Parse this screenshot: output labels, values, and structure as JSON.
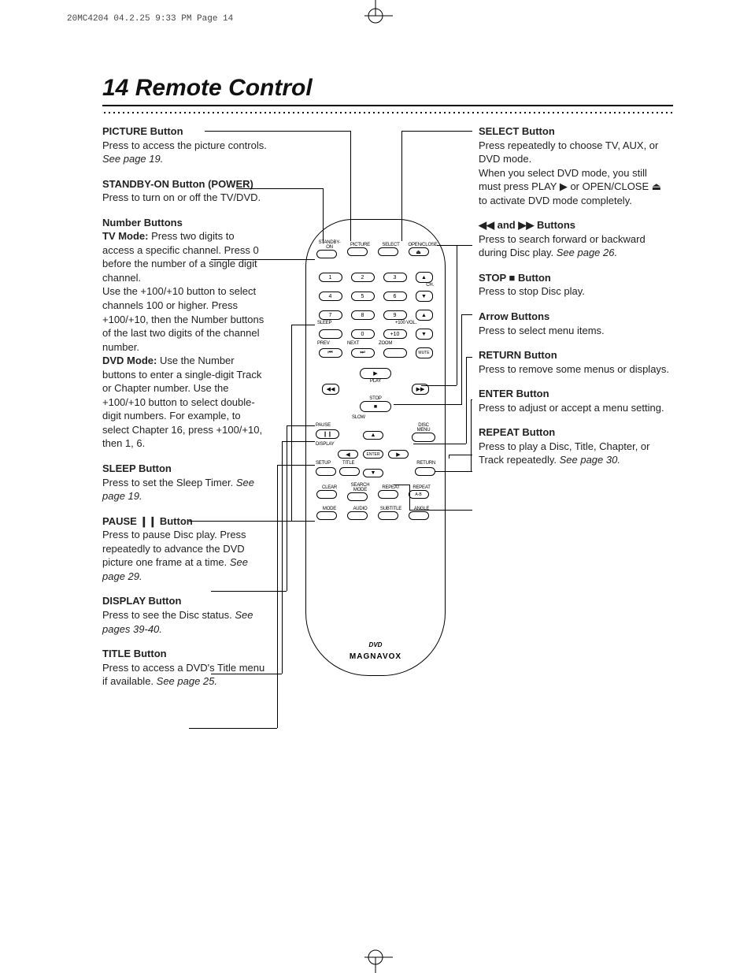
{
  "header": "20MC4204  04.2.25  9:33 PM  Page 14",
  "title": "14  Remote Control",
  "left_items": [
    {
      "title": "PICTURE Button",
      "body": "Press to access the picture controls. <i>See page 19.</i>"
    },
    {
      "title": "STANDBY-ON Button (POWER)",
      "body": "Press to turn on or off the TV/DVD."
    },
    {
      "title": "Number Buttons",
      "body": "<b>TV Mode:</b> Press two digits to access a specific channel. Press 0 before the number of a single digit channel.<br>Use the +100/+10 button to select channels 100 or higher. Press +100/+10, then the Number buttons of the last two digits of the channel number.<br><b>DVD Mode:</b> Use the Number buttons to enter a single-digit Track or Chapter number. Use the +100/+10 button to select double-digit numbers. For example, to select Chapter 16, press +100/+10, then 1, 6."
    },
    {
      "title": "SLEEP Button",
      "body": "Press to set the Sleep Timer. <i>See page 19.</i>"
    },
    {
      "title": "PAUSE ❙❙ Button",
      "body": "Press to pause Disc play. Press repeatedly to advance the DVD picture one frame at a time. <i>See page 29.</i>"
    },
    {
      "title": "DISPLAY Button",
      "body": "Press to see the Disc status. <i>See pages 39-40.</i>"
    },
    {
      "title": "TITLE Button",
      "body": "Press to access a DVD's Title menu if available. <i>See page 25.</i>"
    }
  ],
  "right_items": [
    {
      "title": "SELECT Button",
      "body": "Press repeatedly to choose TV, AUX, or DVD mode.<br>When you select DVD mode, you still must press PLAY ▶ or OPEN/CLOSE ⏏ to activate DVD mode completely."
    },
    {
      "title": "◀◀ and ▶▶ Buttons",
      "body": "Press to search forward or backward during Disc play. <i>See page 26.</i>"
    },
    {
      "title": "STOP ■ Button",
      "body": "Press to stop Disc play."
    },
    {
      "title": "Arrow Buttons",
      "body": "Press to select menu items."
    },
    {
      "title": "RETURN Button",
      "body": "Press to remove some menus or displays."
    },
    {
      "title": "ENTER Button",
      "body": "Press to adjust or accept a menu setting."
    },
    {
      "title": "REPEAT Button",
      "body": "Press to play a Disc, Title, Chapter, or Track repeatedly. <i>See page 30.</i>"
    }
  ],
  "remote": {
    "brand": "MAGNAVOX",
    "logo": "DVD",
    "top_labels": [
      "STANDBY-ON",
      "PICTURE",
      "SELECT",
      "OPEN/CLOSE"
    ],
    "row2_labels": [
      "1",
      "2",
      "3",
      "▲"
    ],
    "row2_side": "CH.",
    "row3_labels": [
      "4",
      "5",
      "6",
      "▼"
    ],
    "row4_labels": [
      "7",
      "8",
      "9",
      "▲"
    ],
    "row4_left": "SLEEP",
    "row4_right": "+100    VOL.",
    "row5_labels": [
      "",
      "0",
      "+10",
      "▼"
    ],
    "row6_left": "PREV",
    "row6_mid": "NEXT",
    "row6_right": "ZOOM",
    "row6_labels": [
      "⏮",
      "⏭",
      "",
      "MUTE"
    ],
    "play": "▶",
    "play_lbl": "PLAY",
    "rew": "◀◀",
    "ff": "▶▶",
    "stop": "■",
    "stop_lbl": "STOP",
    "slow": "SLOW",
    "pause": "❙❙",
    "pause_lbl": "PAUSE",
    "disc_menu": "DISC MENU",
    "display": "DISPLAY",
    "arrows": {
      "up": "▲",
      "down": "▼",
      "left": "◀",
      "right": "▶",
      "enter": "ENTER"
    },
    "setup": "SETUP",
    "title_btn": "TITLE",
    "return": "RETURN",
    "row_clear": [
      "CLEAR",
      "SEARCH MODE",
      "REPEAT",
      "REPEAT"
    ],
    "ab": "A-B",
    "bottom_row": [
      "MODE",
      "AUDIO",
      "SUBTITLE",
      "ANGLE"
    ]
  },
  "colors": {
    "text": "#000000",
    "bg": "#ffffff"
  },
  "fonts": {
    "title_size": 30,
    "body_size": 13
  }
}
